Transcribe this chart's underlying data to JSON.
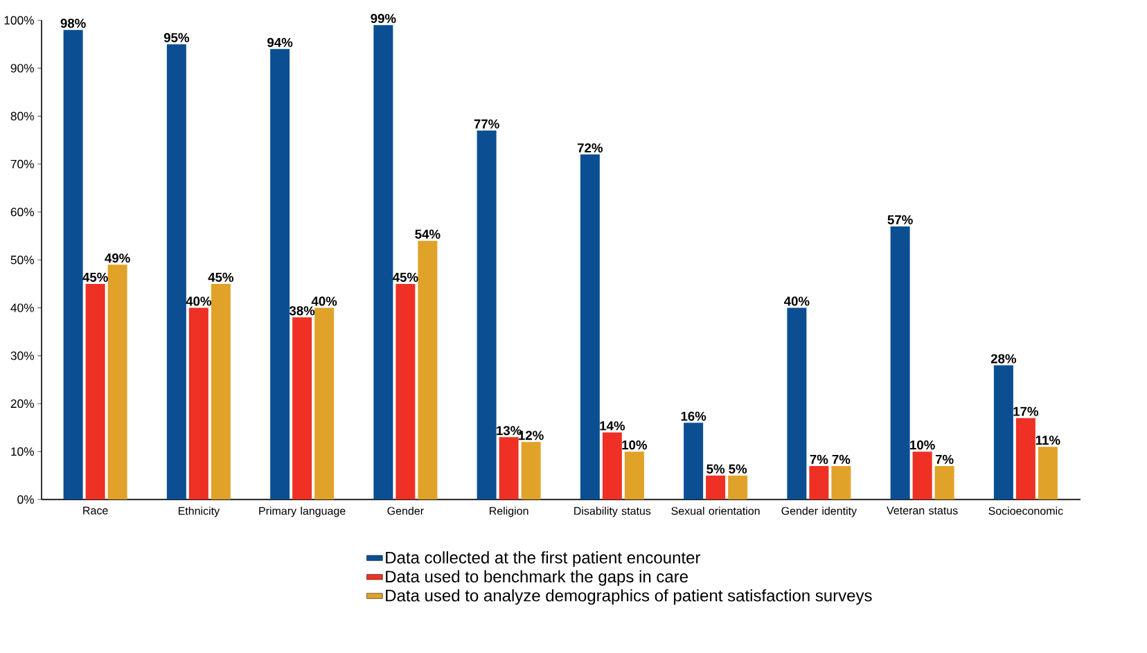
{
  "chart_data": {
    "type": "bar",
    "categories": [
      "Race",
      "Ethnicity",
      "Primary language",
      "Gender",
      "Religion",
      "Disability status",
      "Sexual orientation",
      "Gender identity",
      "Veteran status",
      "Socioeconomic"
    ],
    "series": [
      {
        "name": "Data collected at the first patient encounter",
        "color": "#0b4f92",
        "values": [
          98,
          95,
          94,
          99,
          77,
          72,
          16,
          40,
          57,
          28
        ],
        "value_labels": [
          "98%",
          "95%",
          "94%",
          "99%",
          "77%",
          "72%",
          "16%",
          "40%",
          "57%",
          "28%"
        ]
      },
      {
        "name": "Data used to benchmark the gaps in care",
        "color": "#ee3124",
        "values": [
          45,
          40,
          38,
          45,
          13,
          14,
          5,
          7,
          10,
          17
        ],
        "value_labels": [
          "45%",
          "40%",
          "38%",
          "45%",
          "13%",
          "14%",
          "5%",
          "7%",
          "10%",
          "17%"
        ]
      },
      {
        "name": "Data used to analyze demographics of patient satisfaction surveys",
        "color": "#e0a228",
        "values": [
          49,
          45,
          40,
          54,
          12,
          10,
          5,
          7,
          7,
          11
        ],
        "value_labels": [
          "49%",
          "45%",
          "40%",
          "54%",
          "12%",
          "10%",
          "5%",
          "7%",
          "7%",
          "11%"
        ]
      }
    ],
    "ylim": [
      0,
      100
    ],
    "yticks": [
      {
        "value": 0,
        "label": "0%"
      },
      {
        "value": 10,
        "label": "10%"
      },
      {
        "value": 20,
        "label": "20%"
      },
      {
        "value": 30,
        "label": "30%"
      },
      {
        "value": 40,
        "label": "40%"
      },
      {
        "value": 50,
        "label": "50%"
      },
      {
        "value": 60,
        "label": "60%"
      },
      {
        "value": 70,
        "label": "70%"
      },
      {
        "value": 80,
        "label": "80%"
      },
      {
        "value": 90,
        "label": "90%"
      },
      {
        "value": 100,
        "label": "100%"
      }
    ],
    "grid": false,
    "legend": "bottom"
  }
}
